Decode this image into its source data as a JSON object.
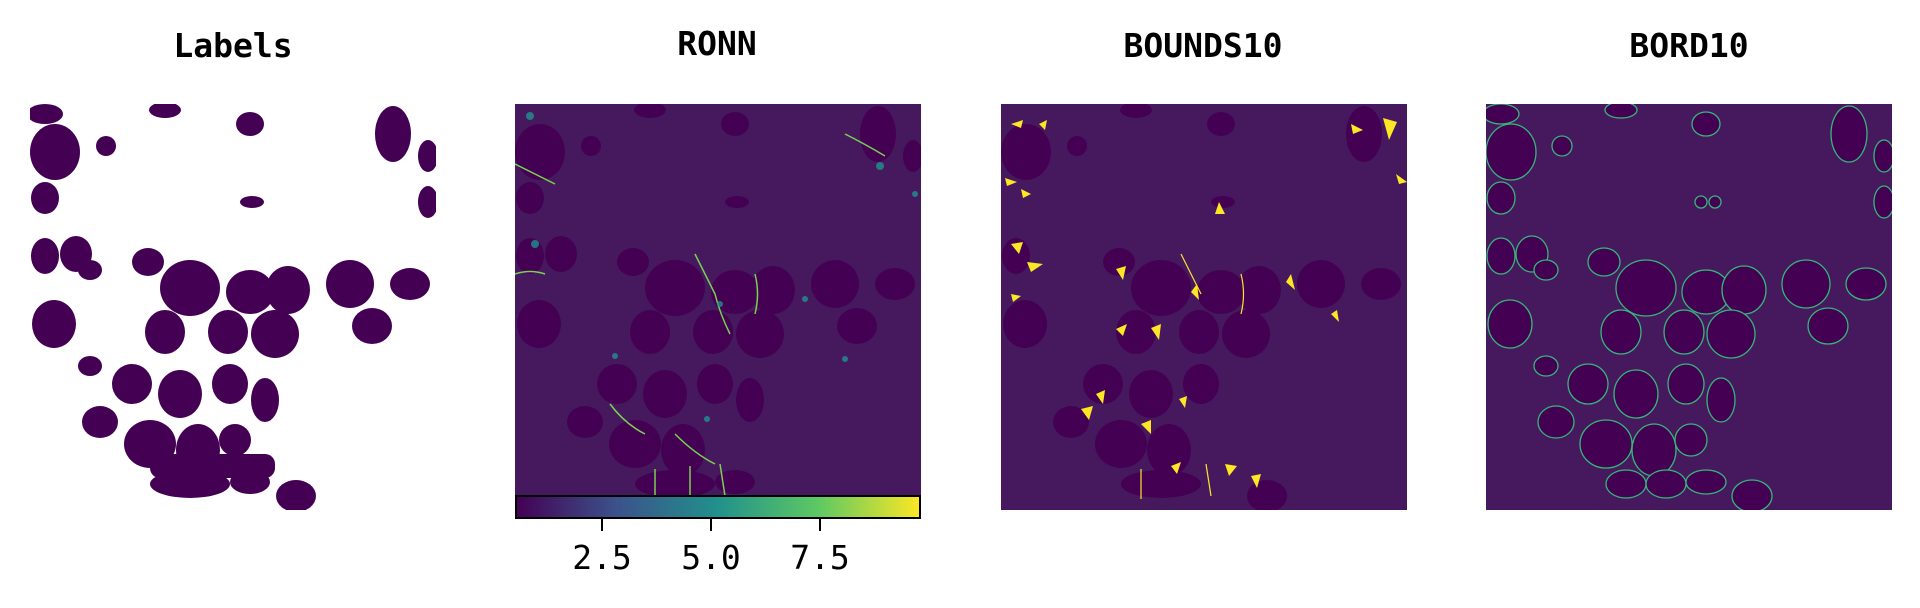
{
  "panels": [
    {
      "title": "Labels"
    },
    {
      "title": "RONN"
    },
    {
      "title": "BOUNDS10"
    },
    {
      "title": "BORD10"
    }
  ],
  "colorbar": {
    "ticks": [
      "2.5",
      "5.0",
      "7.5"
    ],
    "colormap": "viridis"
  },
  "colors": {
    "background_dark": "#440154",
    "field": "#481567",
    "mid": "#21918c",
    "highlight": "#fde725"
  }
}
